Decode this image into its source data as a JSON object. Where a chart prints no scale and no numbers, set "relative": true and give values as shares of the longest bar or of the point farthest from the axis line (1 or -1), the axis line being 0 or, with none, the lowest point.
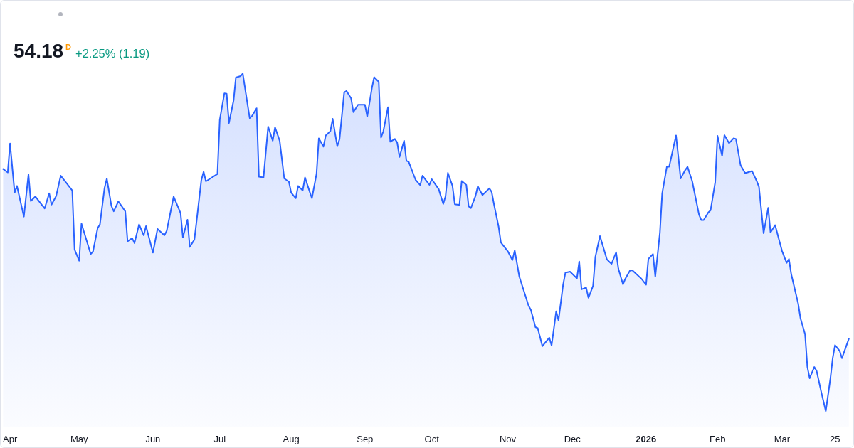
{
  "chart_data": {
    "type": "area",
    "title": "54.18",
    "subtitle": "+2.25% (1.19)",
    "annotations": [
      "D"
    ],
    "relative": true,
    "color": "#2962ff",
    "xlim": [
      "2025-03-28",
      "2026-04-01"
    ],
    "xticks": [
      {
        "value": "2025-04-01",
        "label": "Apr"
      },
      {
        "value": "2025-05-01",
        "label": "May"
      },
      {
        "value": "2025-06-02",
        "label": "Jun"
      },
      {
        "value": "2025-07-01",
        "label": "Jul"
      },
      {
        "value": "2025-08-01",
        "label": "Aug"
      },
      {
        "value": "2025-09-02",
        "label": "Sep"
      },
      {
        "value": "2025-10-01",
        "label": "Oct"
      },
      {
        "value": "2025-11-03",
        "label": "Nov"
      },
      {
        "value": "2025-12-01",
        "label": "Dec"
      },
      {
        "value": "2026-01-02",
        "label": "2026"
      },
      {
        "value": "2026-02-02",
        "label": "Feb"
      },
      {
        "value": "2026-03-02",
        "label": "Mar"
      },
      {
        "value": "2026-03-25",
        "label": "25"
      }
    ],
    "x": [
      "2025-03-29",
      "2025-03-31",
      "2025-04-01",
      "2025-04-03",
      "2025-04-04",
      "2025-04-07",
      "2025-04-09",
      "2025-04-10",
      "2025-04-12",
      "2025-04-16",
      "2025-04-18",
      "2025-04-19",
      "2025-04-21",
      "2025-04-23",
      "2025-04-28",
      "2025-04-29",
      "2025-05-01",
      "2025-05-02",
      "2025-05-06",
      "2025-05-07",
      "2025-05-09",
      "2025-05-10",
      "2025-05-12",
      "2025-05-13",
      "2025-05-15",
      "2025-05-16",
      "2025-05-18",
      "2025-05-21",
      "2025-05-22",
      "2025-05-24",
      "2025-05-25",
      "2025-05-27",
      "2025-05-29",
      "2025-05-30",
      "2025-06-02",
      "2025-06-04",
      "2025-06-07",
      "2025-06-08",
      "2025-06-11",
      "2025-06-14",
      "2025-06-15",
      "2025-06-17",
      "2025-06-18",
      "2025-06-20",
      "2025-06-21",
      "2025-06-23",
      "2025-06-24",
      "2025-06-25",
      "2025-06-30",
      "2025-07-01",
      "2025-07-03",
      "2025-07-04",
      "2025-07-05",
      "2025-07-07",
      "2025-07-08",
      "2025-07-10",
      "2025-07-11",
      "2025-07-14",
      "2025-07-15",
      "2025-07-17",
      "2025-07-18",
      "2025-07-20",
      "2025-07-22",
      "2025-07-24",
      "2025-07-25",
      "2025-07-27",
      "2025-07-29",
      "2025-07-31",
      "2025-08-01",
      "2025-08-03",
      "2025-08-04",
      "2025-08-06",
      "2025-08-07",
      "2025-08-09",
      "2025-08-10",
      "2025-08-12",
      "2025-08-13",
      "2025-08-15",
      "2025-08-16",
      "2025-08-18",
      "2025-08-19",
      "2025-08-21",
      "2025-08-22",
      "2025-08-24",
      "2025-08-25",
      "2025-08-27",
      "2025-08-28",
      "2025-08-30",
      "2025-09-02",
      "2025-09-03",
      "2025-09-05",
      "2025-09-06",
      "2025-09-08",
      "2025-09-09",
      "2025-09-10",
      "2025-09-12",
      "2025-09-13",
      "2025-09-15",
      "2025-09-16",
      "2025-09-17",
      "2025-09-19",
      "2025-09-20",
      "2025-09-21",
      "2025-09-24",
      "2025-09-26",
      "2025-09-27",
      "2025-09-30",
      "2025-10-01",
      "2025-10-04",
      "2025-10-06",
      "2025-10-07",
      "2025-10-08",
      "2025-10-10",
      "2025-10-11",
      "2025-10-13",
      "2025-10-14",
      "2025-10-16",
      "2025-10-17",
      "2025-10-18",
      "2025-10-20",
      "2025-10-21",
      "2025-10-23",
      "2025-10-26",
      "2025-10-27",
      "2025-10-28",
      "2025-10-30",
      "2025-10-31",
      "2025-11-03",
      "2025-11-05",
      "2025-11-06",
      "2025-11-08",
      "2025-11-12",
      "2025-11-13",
      "2025-11-15",
      "2025-11-16",
      "2025-11-18",
      "2025-11-21",
      "2025-11-22",
      "2025-11-24",
      "2025-11-25",
      "2025-11-27",
      "2025-11-28",
      "2025-11-30",
      "2025-12-03",
      "2025-12-04",
      "2025-12-05",
      "2025-12-07",
      "2025-12-08",
      "2025-12-10",
      "2025-12-11",
      "2025-12-13",
      "2025-12-16",
      "2025-12-18",
      "2025-12-20",
      "2025-12-21",
      "2025-12-23",
      "2025-12-24",
      "2025-12-26",
      "2025-12-27",
      "2025-12-31",
      "2026-01-02",
      "2026-01-03",
      "2026-01-05",
      "2026-01-06",
      "2026-01-08",
      "2026-01-09",
      "2026-01-11",
      "2026-01-12",
      "2026-01-13",
      "2026-01-15",
      "2026-01-16",
      "2026-01-17",
      "2026-01-19",
      "2026-01-20",
      "2026-01-22",
      "2026-01-25",
      "2026-01-26",
      "2026-01-27",
      "2026-01-29",
      "2026-01-30",
      "2026-02-01",
      "2026-02-02",
      "2026-02-04",
      "2026-02-05",
      "2026-02-07",
      "2026-02-09",
      "2026-02-10",
      "2026-02-12",
      "2026-02-14",
      "2026-02-17",
      "2026-02-19",
      "2026-02-20",
      "2026-02-22",
      "2026-02-24",
      "2026-02-25",
      "2026-02-27",
      "2026-03-01",
      "2026-03-02",
      "2026-03-04",
      "2026-03-05",
      "2026-03-06",
      "2026-03-09",
      "2026-03-10",
      "2026-03-12",
      "2026-03-13",
      "2026-03-14",
      "2026-03-16",
      "2026-03-17",
      "2026-03-19",
      "2026-03-21",
      "2026-03-23",
      "2026-03-24",
      "2026-03-25",
      "2026-03-27",
      "2026-03-28",
      "2026-03-31"
    ],
    "values": [
      0.73,
      0.72,
      0.802,
      0.663,
      0.682,
      0.595,
      0.715,
      0.639,
      0.652,
      0.618,
      0.661,
      0.629,
      0.653,
      0.711,
      0.669,
      0.502,
      0.47,
      0.575,
      0.489,
      0.496,
      0.562,
      0.573,
      0.676,
      0.703,
      0.625,
      0.61,
      0.638,
      0.61,
      0.525,
      0.534,
      0.52,
      0.573,
      0.542,
      0.568,
      0.493,
      0.56,
      0.542,
      0.555,
      0.652,
      0.605,
      0.536,
      0.586,
      0.509,
      0.53,
      0.585,
      0.698,
      0.722,
      0.695,
      0.716,
      0.869,
      0.944,
      0.943,
      0.86,
      0.924,
      0.989,
      0.993,
      1.0,
      0.874,
      0.88,
      0.902,
      0.708,
      0.706,
      0.85,
      0.81,
      0.848,
      0.81,
      0.703,
      0.694,
      0.663,
      0.647,
      0.682,
      0.669,
      0.706,
      0.666,
      0.647,
      0.716,
      0.817,
      0.793,
      0.825,
      0.837,
      0.872,
      0.794,
      0.815,
      0.947,
      0.951,
      0.93,
      0.891,
      0.912,
      0.912,
      0.878,
      0.958,
      0.99,
      0.977,
      0.819,
      0.837,
      0.905,
      0.807,
      0.815,
      0.805,
      0.764,
      0.81,
      0.753,
      0.75,
      0.699,
      0.684,
      0.711,
      0.685,
      0.701,
      0.673,
      0.631,
      0.653,
      0.719,
      0.682,
      0.63,
      0.628,
      0.696,
      0.685,
      0.624,
      0.619,
      0.654,
      0.681,
      0.656,
      0.675,
      0.665,
      0.63,
      0.567,
      0.522,
      0.497,
      0.472,
      0.499,
      0.425,
      0.343,
      0.331,
      0.282,
      0.279,
      0.228,
      0.252,
      0.23,
      0.327,
      0.301,
      0.402,
      0.436,
      0.439,
      0.42,
      0.468,
      0.389,
      0.394,
      0.365,
      0.399,
      0.481,
      0.54,
      0.474,
      0.461,
      0.494,
      0.447,
      0.403,
      0.419,
      0.442,
      0.443,
      0.419,
      0.402,
      0.475,
      0.489,
      0.425,
      0.549,
      0.661,
      0.736,
      0.736,
      0.765,
      0.825,
      0.765,
      0.703,
      0.727,
      0.736,
      0.696,
      0.6,
      0.585,
      0.585,
      0.607,
      0.613,
      0.692,
      0.824,
      0.767,
      0.826,
      0.803,
      0.817,
      0.815,
      0.741,
      0.718,
      0.724,
      0.696,
      0.679,
      0.548,
      0.62,
      0.55,
      0.571,
      0.522,
      0.498,
      0.464,
      0.475,
      0.432,
      0.349,
      0.307,
      0.262,
      0.169,
      0.137,
      0.169,
      0.158,
      0.099,
      0.044,
      0.137,
      0.194,
      0.231,
      0.215,
      0.194,
      0.249
    ]
  }
}
